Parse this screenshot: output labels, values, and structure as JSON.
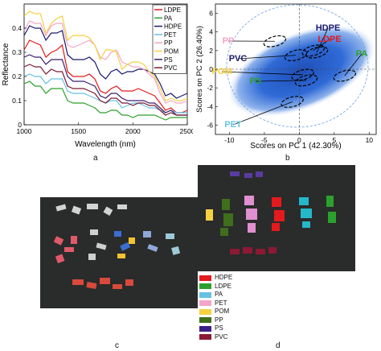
{
  "panels": {
    "a": {
      "caption": "a",
      "chart_data": {
        "type": "line",
        "xlabel": "Wavelength (nm)",
        "ylabel": "Reflectance",
        "xlim": [
          1000,
          2500
        ],
        "ylim": [
          0,
          0.5
        ],
        "xticks": [
          "1000",
          "1500",
          "2000",
          "2500"
        ],
        "yticks": [
          "0",
          "0.1",
          "0.2",
          "0.3",
          "0.4"
        ],
        "legend_position": "top-right",
        "x": [
          1000,
          1050,
          1100,
          1150,
          1200,
          1250,
          1300,
          1350,
          1400,
          1450,
          1500,
          1550,
          1600,
          1650,
          1700,
          1750,
          1800,
          1850,
          1900,
          1950,
          2000,
          2050,
          2100,
          2150,
          2200,
          2250,
          2300,
          2350,
          2400,
          2450,
          2500
        ],
        "series": [
          {
            "name": "LDPE",
            "color": "#e41a1c",
            "values": [
              0.31,
              0.35,
              0.34,
              0.33,
              0.28,
              0.3,
              0.31,
              0.33,
              0.22,
              0.2,
              0.2,
              0.2,
              0.21,
              0.19,
              0.14,
              0.13,
              0.15,
              0.16,
              0.14,
              0.14,
              0.14,
              0.15,
              0.14,
              0.13,
              0.12,
              0.09,
              0.06,
              0.07,
              0.05,
              0.05,
              0.06
            ]
          },
          {
            "name": "PA",
            "color": "#2ca02c",
            "values": [
              0.17,
              0.18,
              0.16,
              0.16,
              0.13,
              0.15,
              0.15,
              0.15,
              0.1,
              0.09,
              0.09,
              0.09,
              0.08,
              0.07,
              0.05,
              0.05,
              0.06,
              0.06,
              0.04,
              0.04,
              0.03,
              0.04,
              0.04,
              0.04,
              0.04,
              0.03,
              0.02,
              0.03,
              0.03,
              0.03,
              0.03
            ]
          },
          {
            "name": "HDPE",
            "color": "#1a1a6e",
            "values": [
              0.37,
              0.41,
              0.4,
              0.4,
              0.35,
              0.38,
              0.38,
              0.39,
              0.29,
              0.27,
              0.27,
              0.27,
              0.28,
              0.26,
              0.21,
              0.19,
              0.22,
              0.23,
              0.21,
              0.22,
              0.22,
              0.23,
              0.23,
              0.22,
              0.21,
              0.17,
              0.12,
              0.13,
              0.11,
              0.12,
              0.13
            ]
          },
          {
            "name": "PET",
            "color": "#66c2e0",
            "values": [
              0.2,
              0.21,
              0.2,
              0.2,
              0.17,
              0.19,
              0.19,
              0.19,
              0.14,
              0.13,
              0.13,
              0.13,
              0.12,
              0.11,
              0.1,
              0.09,
              0.1,
              0.1,
              0.07,
              0.08,
              0.09,
              0.09,
              0.08,
              0.07,
              0.07,
              0.06,
              0.05,
              0.06,
              0.05,
              0.05,
              0.05
            ]
          },
          {
            "name": "PP",
            "color": "#f4a6c8",
            "values": [
              0.39,
              0.43,
              0.42,
              0.42,
              0.37,
              0.41,
              0.42,
              0.42,
              0.33,
              0.32,
              0.33,
              0.34,
              0.35,
              0.33,
              0.28,
              0.27,
              0.3,
              0.31,
              0.26,
              0.25,
              0.24,
              0.24,
              0.23,
              0.21,
              0.19,
              0.13,
              0.09,
              0.1,
              0.09,
              0.09,
              0.1
            ]
          },
          {
            "name": "POM",
            "color": "#f5d142",
            "values": [
              0.45,
              0.47,
              0.46,
              0.46,
              0.38,
              0.42,
              0.44,
              0.45,
              0.35,
              0.37,
              0.37,
              0.37,
              0.36,
              0.33,
              0.27,
              0.31,
              0.31,
              0.3,
              0.23,
              0.25,
              0.26,
              0.26,
              0.25,
              0.22,
              0.2,
              0.15,
              0.1,
              0.11,
              0.1,
              0.1,
              0.11
            ]
          },
          {
            "name": "PS",
            "color": "#3d1f6b",
            "values": [
              0.28,
              0.29,
              0.28,
              0.28,
              0.25,
              0.27,
              0.27,
              0.27,
              0.2,
              0.18,
              0.18,
              0.18,
              0.17,
              0.16,
              0.12,
              0.11,
              0.13,
              0.13,
              0.11,
              0.1,
              0.1,
              0.1,
              0.1,
              0.09,
              0.09,
              0.07,
              0.05,
              0.06,
              0.04,
              0.04,
              0.04
            ]
          },
          {
            "name": "PVC",
            "color": "#7a1b35",
            "values": [
              0.24,
              0.25,
              0.24,
              0.24,
              0.21,
              0.23,
              0.22,
              0.22,
              0.16,
              0.15,
              0.15,
              0.15,
              0.14,
              0.13,
              0.1,
              0.09,
              0.11,
              0.11,
              0.09,
              0.09,
              0.08,
              0.09,
              0.09,
              0.08,
              0.08,
              0.06,
              0.04,
              0.05,
              0.04,
              0.04,
              0.04
            ]
          }
        ]
      }
    },
    "b": {
      "caption": "b",
      "chart_data": {
        "type": "scatter",
        "xlabel": "Scores on PC 1 (42.30%)",
        "ylabel": "Scores on PC 2 (26.40%)",
        "xlim": [
          -12,
          11
        ],
        "ylim": [
          -7,
          7
        ],
        "xticks": [
          "-10",
          "-5",
          "0",
          "5",
          "10"
        ],
        "yticks": [
          "-6",
          "-4",
          "-2",
          "0",
          "2",
          "4",
          "6"
        ],
        "clusters": [
          {
            "name": "HDPE",
            "color": "#1a1a6e",
            "x": 2.5,
            "y": 1.8
          },
          {
            "name": "LDPE",
            "color": "#e41a1c",
            "x": 2.0,
            "y": 2.0
          },
          {
            "name": "PA",
            "color": "#2ca02c",
            "x": 6.5,
            "y": -0.7
          },
          {
            "name": "PP",
            "color": "#f4a6c8",
            "x": -3.5,
            "y": 3.0
          },
          {
            "name": "PVC",
            "color": "#1a1a6e",
            "x": -0.5,
            "y": 1.5
          },
          {
            "name": "POM",
            "color": "#f5d142",
            "x": 0.5,
            "y": -0.6
          },
          {
            "name": "PS",
            "color": "#2ca02c",
            "x": 1.0,
            "y": -1.2
          },
          {
            "name": "PET",
            "color": "#66c2e0",
            "x": -1.0,
            "y": -3.5
          }
        ]
      }
    },
    "c": {
      "caption": "c",
      "photo_desc_colors": [
        "#e6e6e6",
        "#e05a6a",
        "#3a6fd0",
        "#f2c230",
        "#9ec9d8",
        "#d84a3c"
      ]
    },
    "d": {
      "caption": "d",
      "legend": [
        {
          "label": "HDPE",
          "color": "#e41a1c"
        },
        {
          "label": "LDPE",
          "color": "#2ca02c"
        },
        {
          "label": "PA",
          "color": "#66c2e0"
        },
        {
          "label": "PET",
          "color": "#f4a6c8"
        },
        {
          "label": "POM",
          "color": "#f5d142"
        },
        {
          "label": "PP",
          "color": "#3f6e1d"
        },
        {
          "label": "PS",
          "color": "#3d1f8a"
        },
        {
          "label": "PVC",
          "color": "#8b1a35"
        }
      ]
    }
  }
}
